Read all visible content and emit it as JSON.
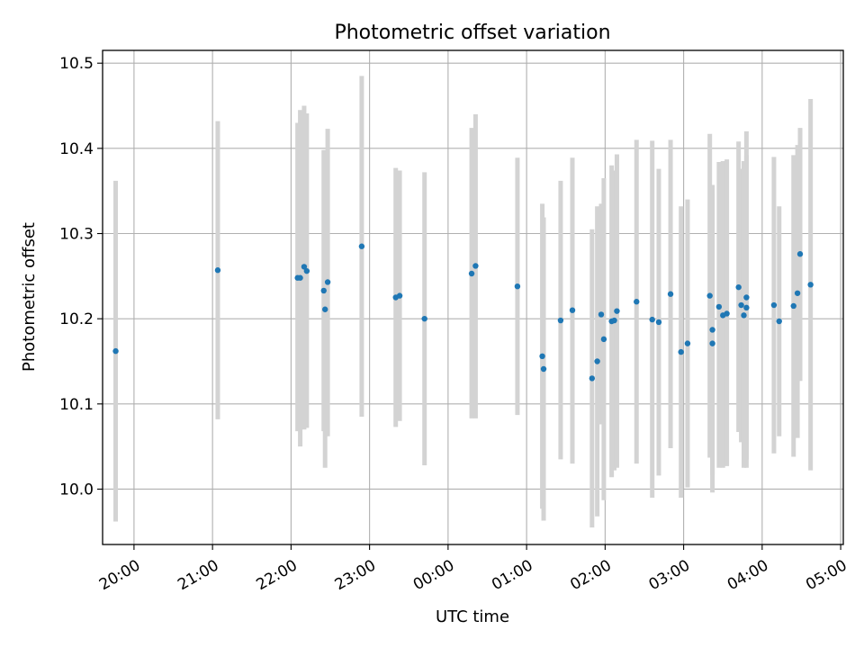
{
  "chart_data": {
    "type": "scatter",
    "title": "Photometric offset variation",
    "xlabel": "UTC time",
    "ylabel": "Photometric offset",
    "x_axis_type": "time",
    "xlim": [
      "19:36",
      "05:02"
    ],
    "ylim": [
      9.935,
      10.515
    ],
    "grid": true,
    "x_ticks": [
      "20:00",
      "21:00",
      "22:00",
      "23:00",
      "00:00",
      "01:00",
      "02:00",
      "03:00",
      "04:00",
      "05:00"
    ],
    "y_ticks": [
      "10.0",
      "10.1",
      "10.2",
      "10.3",
      "10.4",
      "10.5"
    ],
    "point_color": "#1f77b4",
    "errorbar_color": "#d3d3d3",
    "series": [
      {
        "x": [
          "19:46",
          "21:04",
          "22:05",
          "22:07",
          "22:10",
          "22:12",
          "22:25",
          "22:26",
          "22:28",
          "22:54",
          "23:20",
          "23:23",
          "23:42",
          "00:18",
          "00:21",
          "00:53",
          "01:12",
          "01:13",
          "01:26",
          "01:35",
          "01:50",
          "01:54",
          "01:57",
          "01:59",
          "02:05",
          "02:07",
          "02:09",
          "02:24",
          "02:36",
          "02:41",
          "02:50",
          "02:58",
          "03:03",
          "03:20",
          "03:22",
          "03:22",
          "03:27",
          "03:30",
          "03:33",
          "03:42",
          "03:44",
          "03:46",
          "03:48",
          "03:48",
          "04:09",
          "04:13",
          "04:24",
          "04:27",
          "04:29",
          "04:37"
        ],
        "y": [
          10.162,
          10.257,
          10.248,
          10.248,
          10.261,
          10.256,
          10.233,
          10.211,
          10.243,
          10.285,
          10.225,
          10.227,
          10.2,
          10.253,
          10.262,
          10.238,
          10.156,
          10.141,
          10.198,
          10.21,
          10.13,
          10.15,
          10.205,
          10.176,
          10.197,
          10.198,
          10.209,
          10.22,
          10.199,
          10.196,
          10.229,
          10.161,
          10.171,
          10.227,
          10.171,
          10.187,
          10.214,
          10.204,
          10.206,
          10.237,
          10.216,
          10.204,
          10.213,
          10.225,
          10.216,
          10.197,
          10.215,
          10.23,
          10.276,
          10.24
        ],
        "y_low": [
          9.962,
          10.082,
          10.068,
          10.05,
          10.07,
          10.072,
          10.068,
          10.025,
          10.062,
          10.085,
          10.073,
          10.08,
          10.028,
          10.083,
          10.083,
          10.087,
          9.977,
          9.963,
          10.035,
          10.03,
          9.955,
          9.968,
          10.076,
          9.987,
          10.014,
          10.022,
          10.025,
          10.03,
          9.99,
          10.016,
          10.048,
          9.99,
          10.002,
          10.037,
          9.996,
          10.017,
          10.025,
          10.025,
          10.027,
          10.067,
          10.055,
          10.025,
          10.035,
          10.025,
          10.042,
          10.062,
          10.038,
          10.06,
          10.127,
          10.022
        ],
        "y_high": [
          10.362,
          10.432,
          10.43,
          10.445,
          10.45,
          10.441,
          10.398,
          10.398,
          10.423,
          10.485,
          10.377,
          10.374,
          10.372,
          10.424,
          10.44,
          10.389,
          10.335,
          10.319,
          10.362,
          10.389,
          10.305,
          10.332,
          10.335,
          10.365,
          10.38,
          10.374,
          10.393,
          10.41,
          10.409,
          10.376,
          10.41,
          10.332,
          10.34,
          10.417,
          10.347,
          10.357,
          10.384,
          10.385,
          10.387,
          10.408,
          10.376,
          10.385,
          10.392,
          10.42,
          10.39,
          10.332,
          10.392,
          10.404,
          10.424,
          10.458
        ]
      }
    ]
  }
}
